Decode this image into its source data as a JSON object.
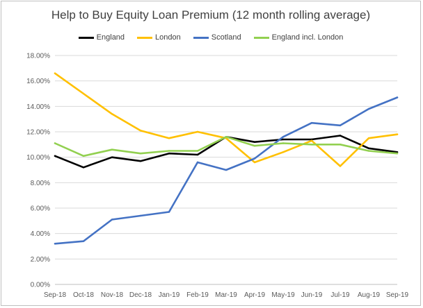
{
  "chart_data": {
    "type": "line",
    "title": "Help to Buy Equity Loan Premium (12 month rolling average)",
    "categories": [
      "Sep-18",
      "Oct-18",
      "Nov-18",
      "Dec-18",
      "Jan-19",
      "Feb-19",
      "Mar-19",
      "Apr-19",
      "May-19",
      "Jun-19",
      "Jul-19",
      "Aug-19",
      "Sep-19"
    ],
    "ylim": [
      0,
      0.18
    ],
    "ytick_labels": [
      "0.00%",
      "2.00%",
      "4.00%",
      "6.00%",
      "8.00%",
      "10.00%",
      "12.00%",
      "14.00%",
      "16.00%",
      "18.00%"
    ],
    "grid": true,
    "legend_position": "top",
    "series": [
      {
        "name": "England",
        "color": "#000000",
        "values": [
          0.101,
          0.092,
          0.1,
          0.097,
          0.103,
          0.102,
          0.116,
          0.112,
          0.114,
          0.114,
          0.117,
          0.107,
          0.104
        ]
      },
      {
        "name": "London",
        "color": "#ffc000",
        "values": [
          0.166,
          0.15,
          0.134,
          0.121,
          0.115,
          0.12,
          0.115,
          0.096,
          0.104,
          0.113,
          0.093,
          0.115,
          0.118
        ]
      },
      {
        "name": "Scotland",
        "color": "#4472c4",
        "values": [
          0.032,
          0.034,
          0.051,
          0.054,
          0.057,
          0.096,
          0.09,
          0.099,
          0.116,
          0.127,
          0.125,
          0.138,
          0.147
        ]
      },
      {
        "name": "England incl. London",
        "color": "#92d050",
        "values": [
          0.111,
          0.101,
          0.106,
          0.103,
          0.105,
          0.105,
          0.116,
          0.109,
          0.111,
          0.11,
          0.11,
          0.105,
          0.103
        ]
      }
    ]
  }
}
